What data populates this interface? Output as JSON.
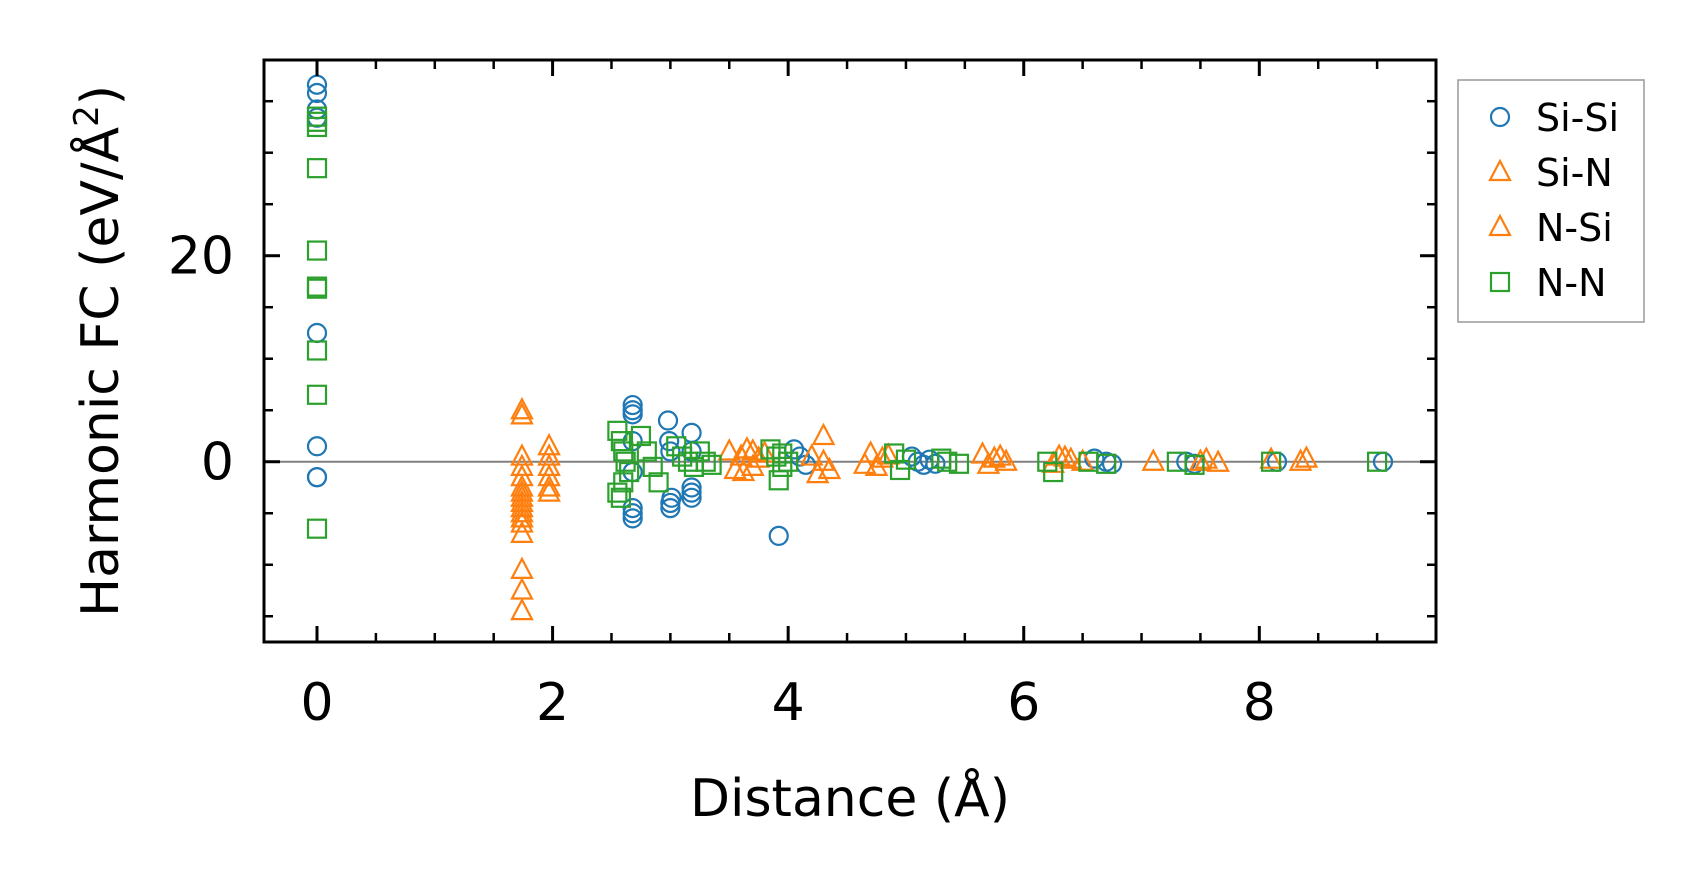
{
  "chart_data": {
    "type": "scatter",
    "xlabel": "Distance (Å)",
    "ylabel_main": "Harmonic FC (eV/Å",
    "ylabel_sup": "2",
    "ylabel_tail": ")",
    "xlim": [
      -0.45,
      9.5
    ],
    "ylim": [
      -17.5,
      39
    ],
    "x_ticks": [
      0,
      2,
      4,
      6,
      8
    ],
    "x_tick_labels": [
      "0",
      "2",
      "4",
      "6",
      "8"
    ],
    "y_ticks": [
      0,
      20
    ],
    "y_tick_labels": [
      "0",
      "20"
    ],
    "x_minor_step": 0.5,
    "y_minor_step": 5,
    "zero_line": true,
    "legend_position": "outside-right-top",
    "colors": {
      "si_si": "#1f77b4",
      "si_n": "#ff7f0e",
      "n_si": "#ff7f0e",
      "n_n": "#2ca02c",
      "zero_line": "#808080",
      "legend_frame": "#999999"
    },
    "legend": [
      {
        "label": "Si-Si",
        "marker": "circle",
        "color_key": "si_si"
      },
      {
        "label": "Si-N",
        "marker": "triangle",
        "color_key": "si_n"
      },
      {
        "label": "N-Si",
        "marker": "triangle",
        "color_key": "n_si"
      },
      {
        "label": "N-N",
        "marker": "square",
        "color_key": "n_n"
      }
    ],
    "series": [
      {
        "name": "Si-Si",
        "marker": "circle",
        "color_key": "si_si",
        "x": [
          0,
          0,
          0,
          0,
          0,
          0,
          0,
          0,
          2.68,
          2.68,
          2.68,
          2.68,
          2.68,
          2.68,
          2.68,
          2.68,
          2.98,
          2.99,
          3.0,
          3.01,
          3.0,
          3.0,
          3.18,
          3.18,
          3.18,
          3.18,
          3.18,
          3.92,
          4.05,
          4.1,
          4.15,
          5.05,
          5.1,
          5.15,
          5.2,
          5.25,
          6.6,
          6.7,
          6.75,
          7.38,
          7.45,
          8.15,
          9.05
        ],
        "y": [
          36.6,
          35.8,
          34.2,
          33.4,
          12.5,
          1.5,
          -1.5,
          -1.5,
          5.5,
          5.0,
          4.6,
          2.0,
          -1.0,
          -4.5,
          -5.0,
          -5.5,
          4.0,
          2.0,
          1.0,
          -3.5,
          -4.0,
          -4.5,
          2.8,
          1.0,
          -2.5,
          -3.0,
          -3.5,
          -7.2,
          1.2,
          0.5,
          -0.3,
          0.5,
          0.0,
          -0.3,
          0.2,
          -0.2,
          0.3,
          0.0,
          -0.2,
          0.0,
          -0.2,
          0.0,
          0.0
        ]
      },
      {
        "name": "Si-N",
        "marker": "triangle",
        "color_key": "si_n",
        "x": [
          1.74,
          1.74,
          1.74,
          1.74,
          1.74,
          1.74,
          1.74,
          1.74,
          1.74,
          1.74,
          1.74,
          1.74,
          1.97,
          1.97,
          1.97,
          1.97,
          3.5,
          3.6,
          3.65,
          3.7,
          3.75,
          4.3,
          4.35,
          4.2,
          4.7,
          4.75,
          4.8,
          5.65,
          5.75,
          5.85,
          6.3,
          6.4,
          6.5,
          7.1,
          7.55,
          7.65,
          8.4
        ],
        "y": [
          5.0,
          4.5,
          0.5,
          -0.5,
          -1.5,
          -3.0,
          -4.0,
          -5.0,
          -6.0,
          -10.5,
          -12.5,
          -14.5,
          1.5,
          0.5,
          -1.5,
          -3.0,
          1.0,
          0.5,
          1.2,
          -0.5,
          0.3,
          2.5,
          -0.8,
          0.5,
          0.8,
          -0.5,
          0.3,
          0.7,
          0.3,
          0.0,
          0.5,
          0.2,
          0.0,
          0.0,
          0.2,
          -0.1,
          0.3
        ]
      },
      {
        "name": "N-Si",
        "marker": "triangle",
        "color_key": "n_si",
        "x": [
          1.74,
          1.74,
          1.74,
          1.74,
          1.74,
          1.97,
          1.97,
          3.55,
          3.62,
          3.7,
          3.8,
          4.25,
          4.3,
          4.65,
          4.85,
          5.7,
          5.8,
          6.25,
          6.35,
          7.5,
          8.1,
          8.35
        ],
        "y": [
          -2.5,
          -3.5,
          -4.5,
          -5.5,
          -7.0,
          -0.5,
          -2.5,
          -0.8,
          -1.0,
          1.0,
          0.8,
          -1.2,
          0.0,
          -0.3,
          0.6,
          -0.3,
          0.5,
          -0.2,
          0.4,
          0.0,
          0.2,
          0.0
        ]
      },
      {
        "name": "N-N",
        "marker": "square",
        "color_key": "n_n",
        "x": [
          0,
          0,
          0,
          0,
          0,
          0,
          0,
          0,
          0,
          0,
          2.55,
          2.58,
          2.6,
          2.62,
          2.65,
          2.6,
          2.55,
          2.58,
          2.75,
          2.8,
          2.85,
          2.9,
          3.05,
          3.1,
          3.15,
          3.2,
          3.25,
          3.3,
          3.35,
          3.85,
          3.9,
          3.95,
          4.0,
          3.92,
          3.95,
          4.9,
          4.95,
          5.0,
          5.3,
          5.35,
          5.45,
          6.2,
          6.25,
          6.55,
          6.7,
          7.3,
          7.45,
          8.1,
          9.0
        ],
        "y": [
          33.5,
          32.5,
          28.5,
          20.5,
          17.0,
          16.8,
          10.8,
          6.5,
          -6.5,
          33.0,
          3.0,
          2.0,
          1.0,
          0.0,
          -1.0,
          -2.0,
          -3.0,
          -3.5,
          2.5,
          1.0,
          -0.5,
          -2.0,
          1.5,
          0.5,
          0.0,
          -0.5,
          1.0,
          0.0,
          -0.3,
          1.2,
          0.5,
          -0.5,
          0.0,
          -1.8,
          0.8,
          0.8,
          -0.8,
          0.2,
          0.3,
          0.0,
          -0.2,
          0.0,
          -1.0,
          0.0,
          -0.2,
          0.0,
          -0.3,
          0.0,
          0.0
        ]
      }
    ]
  }
}
